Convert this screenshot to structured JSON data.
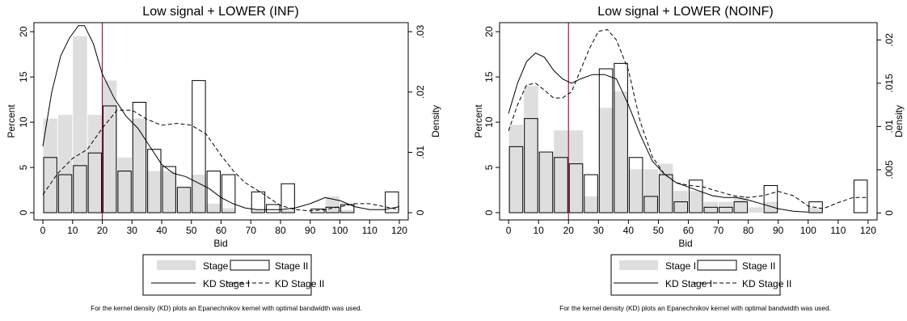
{
  "chart_data": [
    {
      "type": "bar",
      "title": "Low signal + LOWER (INF)",
      "xlabel": "Bid",
      "ylabel": "Percent",
      "y2label": "Density",
      "xlim": [
        -3,
        123
      ],
      "ylim": [
        -0.8,
        21
      ],
      "y2lim": [
        -0.0012,
        0.0315
      ],
      "xticks": [
        0,
        10,
        20,
        30,
        40,
        50,
        60,
        70,
        80,
        90,
        100,
        110,
        120
      ],
      "yticks": [
        0,
        5,
        10,
        15,
        20
      ],
      "y2ticks": [
        0,
        0.01,
        0.02,
        0.03
      ],
      "y2ticklabels": [
        "0",
        ".01",
        ".02",
        ".03"
      ],
      "reference_line_x": 20,
      "bin_width": 5,
      "stage1": {
        "name": "Stage I",
        "bins": [
          [
            0,
            10.4
          ],
          [
            5,
            10.8
          ],
          [
            10,
            19.5
          ],
          [
            15,
            10.8
          ],
          [
            20,
            14.6
          ],
          [
            25,
            6.1
          ],
          [
            30,
            10.4
          ],
          [
            35,
            4.6
          ],
          [
            40,
            4.6
          ],
          [
            45,
            2.8
          ],
          [
            50,
            4.2
          ],
          [
            55,
            1.0
          ],
          [
            60,
            0.5
          ],
          [
            70,
            0.3
          ],
          [
            80,
            0.3
          ],
          [
            95,
            1.8
          ],
          [
            100,
            0.3
          ]
        ]
      },
      "stage2": {
        "name": "Stage II",
        "bins": [
          [
            0,
            6.1
          ],
          [
            5,
            4.2
          ],
          [
            10,
            5.2
          ],
          [
            15,
            6.6
          ],
          [
            20,
            11.8
          ],
          [
            25,
            4.6
          ],
          [
            30,
            12.2
          ],
          [
            35,
            7.0
          ],
          [
            40,
            5.1
          ],
          [
            45,
            2.8
          ],
          [
            50,
            14.6
          ],
          [
            55,
            4.6
          ],
          [
            60,
            4.2
          ],
          [
            70,
            2.3
          ],
          [
            75,
            0.9
          ],
          [
            80,
            3.2
          ],
          [
            90,
            0.4
          ],
          [
            95,
            0.6
          ],
          [
            100,
            0.9
          ],
          [
            115,
            2.3
          ]
        ]
      },
      "kd1": {
        "name": "KD Stage I",
        "x": [
          0,
          3,
          6,
          9,
          12,
          14,
          17,
          20,
          24,
          28,
          32,
          36,
          40,
          44,
          48,
          52,
          56,
          60,
          64,
          68,
          72,
          76,
          80,
          85,
          90,
          95,
          100,
          105,
          110,
          115,
          120
        ],
        "y": [
          0.011,
          0.02,
          0.026,
          0.029,
          0.031,
          0.031,
          0.028,
          0.023,
          0.019,
          0.016,
          0.014,
          0.011,
          0.008,
          0.0065,
          0.006,
          0.005,
          0.004,
          0.0025,
          0.0015,
          0.0008,
          0.0005,
          0.0005,
          0.0005,
          0.0008,
          0.0015,
          0.0025,
          0.002,
          0.001,
          0.0005,
          0.0005,
          0.001
        ]
      },
      "kd2": {
        "name": "KD Stage II",
        "x": [
          0,
          5,
          10,
          15,
          20,
          25,
          30,
          35,
          40,
          45,
          50,
          55,
          60,
          64,
          68,
          72,
          76,
          80,
          85,
          90,
          95,
          100,
          105,
          110,
          115,
          120
        ],
        "y": [
          0.003,
          0.0065,
          0.009,
          0.0105,
          0.014,
          0.017,
          0.017,
          0.0155,
          0.0145,
          0.0148,
          0.0145,
          0.013,
          0.0095,
          0.007,
          0.005,
          0.0038,
          0.0025,
          0.0012,
          0.0005,
          0.0003,
          0.0005,
          0.001,
          0.0015,
          0.0015,
          0.001,
          0.0005
        ]
      }
    },
    {
      "type": "bar",
      "title": "Low signal + LOWER (NOINF)",
      "xlabel": "Bid",
      "ylabel": "Percent",
      "y2label": "Density",
      "xlim": [
        -3,
        123
      ],
      "ylim": [
        -0.8,
        21
      ],
      "y2lim": [
        -0.0008,
        0.022
      ],
      "xticks": [
        0,
        10,
        20,
        30,
        40,
        50,
        60,
        70,
        80,
        90,
        100,
        110,
        120
      ],
      "yticks": [
        0,
        5,
        10,
        15,
        20
      ],
      "y2ticks": [
        0,
        0.005,
        0.01,
        0.015,
        0.02
      ],
      "y2ticklabels": [
        "0",
        ".005",
        ".01",
        ".015",
        ".02"
      ],
      "reference_line_x": 20,
      "bin_width": 5,
      "stage1": {
        "name": "Stage I",
        "bins": [
          [
            0,
            9.7
          ],
          [
            5,
            14.0
          ],
          [
            10,
            6.6
          ],
          [
            15,
            9.1
          ],
          [
            20,
            9.1
          ],
          [
            25,
            1.8
          ],
          [
            30,
            11.6
          ],
          [
            35,
            13.4
          ],
          [
            40,
            4.8
          ],
          [
            45,
            4.8
          ],
          [
            50,
            5.4
          ],
          [
            55,
            2.4
          ],
          [
            60,
            2.4
          ],
          [
            65,
            1.2
          ],
          [
            70,
            1.2
          ],
          [
            75,
            1.8
          ],
          [
            80,
            0.6
          ],
          [
            85,
            1.2
          ],
          [
            100,
            0.6
          ]
        ]
      },
      "stage2": {
        "name": "Stage II",
        "bins": [
          [
            0,
            7.3
          ],
          [
            5,
            10.4
          ],
          [
            10,
            6.7
          ],
          [
            15,
            6.1
          ],
          [
            20,
            5.4
          ],
          [
            25,
            4.2
          ],
          [
            30,
            15.9
          ],
          [
            35,
            16.5
          ],
          [
            40,
            6.1
          ],
          [
            45,
            1.8
          ],
          [
            50,
            4.2
          ],
          [
            55,
            1.2
          ],
          [
            60,
            3.6
          ],
          [
            65,
            0.6
          ],
          [
            70,
            0.6
          ],
          [
            75,
            1.2
          ],
          [
            85,
            3.0
          ],
          [
            100,
            1.2
          ],
          [
            115,
            3.6
          ]
        ]
      },
      "kd1": {
        "name": "KD Stage I",
        "x": [
          0,
          3,
          6,
          9,
          12,
          15,
          18,
          21,
          24,
          28,
          32,
          36,
          40,
          44,
          48,
          52,
          56,
          60,
          64,
          68,
          72,
          76,
          80,
          85,
          90,
          95,
          100
        ],
        "y": [
          0.0115,
          0.015,
          0.0175,
          0.0185,
          0.018,
          0.0165,
          0.0155,
          0.015,
          0.0155,
          0.016,
          0.016,
          0.0155,
          0.0125,
          0.009,
          0.006,
          0.0045,
          0.0035,
          0.003,
          0.0025,
          0.002,
          0.0018,
          0.0018,
          0.0015,
          0.001,
          0.0005,
          0.0002,
          0.0001
        ]
      },
      "kd2": {
        "name": "KD Stage II",
        "x": [
          0,
          3,
          6,
          9,
          12,
          15,
          18,
          21,
          24,
          27,
          30,
          33,
          36,
          40,
          44,
          48,
          52,
          56,
          60,
          65,
          70,
          75,
          80,
          85,
          90,
          95,
          100,
          105,
          110,
          115,
          120
        ],
        "y": [
          0.0095,
          0.0125,
          0.0148,
          0.015,
          0.0142,
          0.0133,
          0.0133,
          0.014,
          0.0165,
          0.019,
          0.021,
          0.0212,
          0.02,
          0.0165,
          0.0105,
          0.0065,
          0.0045,
          0.0035,
          0.0032,
          0.003,
          0.0025,
          0.002,
          0.0018,
          0.002,
          0.0025,
          0.002,
          0.0008,
          0.0005,
          0.0012,
          0.0018,
          0.0018
        ]
      }
    }
  ],
  "legend": {
    "stage1": "Stage I",
    "stage2": "Stage II",
    "kd1": "KD Stage I",
    "kd2": "KD Stage II"
  },
  "note": "For the kernel density (KD) plots an Epanechnikov kernel with optimal bandwidth was used."
}
